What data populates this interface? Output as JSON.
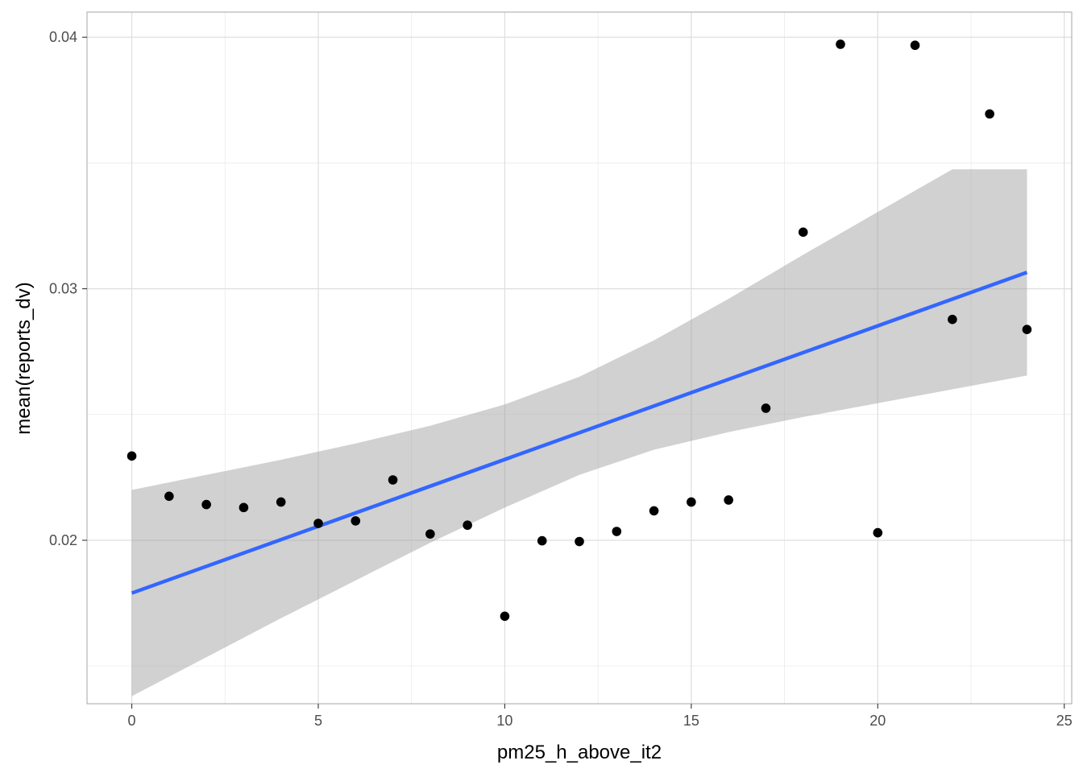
{
  "chart_data": {
    "type": "scatter",
    "xlabel": "pm25_h_above_it2",
    "ylabel": "mean(reports_dv)",
    "xlim": [
      -1.2,
      25.2
    ],
    "ylim": [
      0.0135,
      0.041
    ],
    "x_ticks": [
      0,
      5,
      10,
      15,
      20,
      25
    ],
    "x_tick_labels": [
      "0",
      "5",
      "10",
      "15",
      "20",
      "25"
    ],
    "y_ticks": [
      0.02,
      0.03,
      0.04
    ],
    "y_tick_labels": [
      "0.02",
      "0.03",
      "0.04"
    ],
    "x_minor_ticks": [
      2.5,
      7.5,
      12.5,
      17.5,
      22.5
    ],
    "y_minor_ticks": [
      0.015,
      0.025,
      0.035
    ],
    "grid": true,
    "points": {
      "x": [
        0,
        1,
        2,
        3,
        4,
        5,
        6,
        7,
        8,
        9,
        10,
        11,
        12,
        13,
        14,
        15,
        16,
        17,
        18,
        19,
        20,
        21,
        22,
        23,
        24
      ],
      "y": [
        0.02335,
        0.02175,
        0.02142,
        0.0213,
        0.02152,
        0.02067,
        0.02077,
        0.0224,
        0.02025,
        0.0206,
        0.01698,
        0.01998,
        0.01995,
        0.02035,
        0.02117,
        0.02152,
        0.0216,
        0.02525,
        0.03225,
        0.03972,
        0.0203,
        0.03968,
        0.02878,
        0.03695,
        0.02838
      ],
      "color": "#000000"
    },
    "fit_line": {
      "x": [
        0,
        24
      ],
      "y": [
        0.0179,
        0.03065
      ],
      "color": "#3366ff"
    },
    "confidence_band": {
      "x": [
        0,
        2,
        4,
        6,
        8,
        10,
        12,
        14,
        16,
        18,
        20,
        22,
        24
      ],
      "lower": [
        0.0138,
        0.01535,
        0.0169,
        0.0184,
        0.0199,
        0.0213,
        0.0226,
        0.0236,
        0.0243,
        0.0249,
        0.02545,
        0.026,
        0.02655
      ],
      "upper": [
        0.022,
        0.0226,
        0.0232,
        0.02385,
        0.02455,
        0.0254,
        0.0265,
        0.02795,
        0.0296,
        0.03135,
        0.03305,
        0.03475,
        0.03475
      ],
      "color": "#999999"
    }
  }
}
